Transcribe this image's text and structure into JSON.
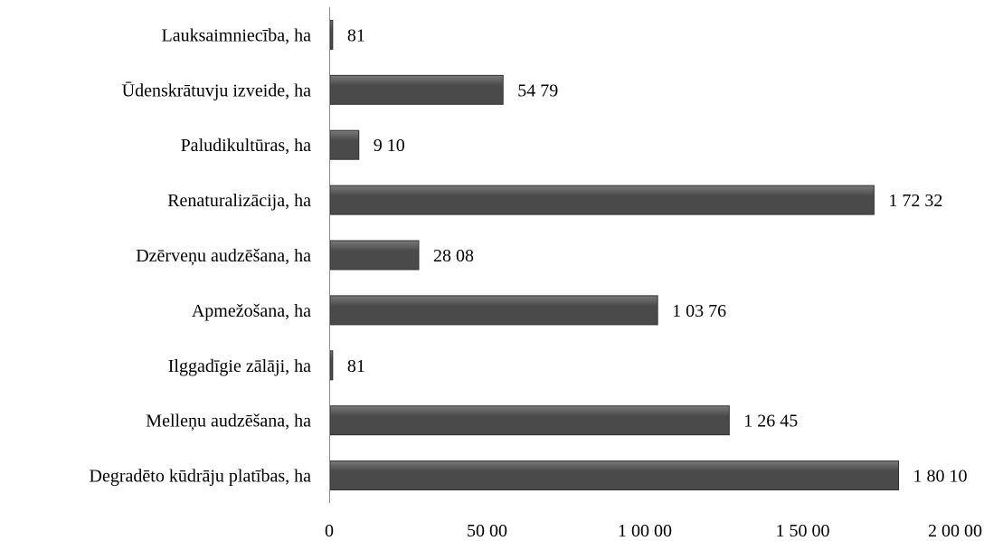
{
  "chart_data": {
    "type": "bar",
    "orientation": "horizontal",
    "categories": [
      "Lauksaimniecība, ha",
      "Ūdenskrātuvju izveide, ha",
      "Paludikultūras, ha",
      "Renaturalizācija, ha",
      "Dzērveņu audzēšana, ha",
      "Apmežošana, ha",
      "Ilggadīgie zālāji, ha",
      "Melleņu audzēšana, ha",
      "Degradēto kūdrāju platības, ha"
    ],
    "values": [
      81,
      5479,
      910,
      17232,
      2808,
      10376,
      81,
      12645,
      18010
    ],
    "value_labels": [
      "81",
      "54 79",
      "9 10",
      "1 72 32",
      "28 08",
      "1 03 76",
      "81",
      "1 26 45",
      "1 80 10"
    ],
    "xlim": [
      0,
      20000
    ],
    "xticks": [
      0,
      5000,
      10000,
      15000,
      20000
    ],
    "xtick_labels": [
      "0",
      "50 00",
      "1 00 00",
      "1 50 00",
      "2 00 00"
    ],
    "title": "",
    "xlabel": "",
    "ylabel": "",
    "grid": false,
    "legend": "none",
    "colors": {
      "bar_dark": "#4a4a4a",
      "bar_light": "#7a7a7a",
      "bar_edge": "#303030",
      "axis": "#8c8c8c"
    }
  }
}
